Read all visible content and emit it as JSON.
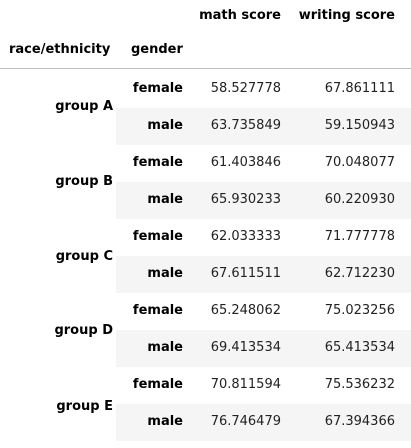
{
  "table": {
    "columns": [
      "math score",
      "writing score"
    ],
    "index_names": [
      "race/ethnicity",
      "gender"
    ],
    "groups": [
      {
        "label": "group A",
        "rows": [
          {
            "gender": "female",
            "math": "58.527778",
            "writing": "67.861111"
          },
          {
            "gender": "male",
            "math": "63.735849",
            "writing": "59.150943"
          }
        ]
      },
      {
        "label": "group B",
        "rows": [
          {
            "gender": "female",
            "math": "61.403846",
            "writing": "70.048077"
          },
          {
            "gender": "male",
            "math": "65.930233",
            "writing": "60.220930"
          }
        ]
      },
      {
        "label": "group C",
        "rows": [
          {
            "gender": "female",
            "math": "62.033333",
            "writing": "71.777778"
          },
          {
            "gender": "male",
            "math": "67.611511",
            "writing": "62.712230"
          }
        ]
      },
      {
        "label": "group D",
        "rows": [
          {
            "gender": "female",
            "math": "65.248062",
            "writing": "75.023256"
          },
          {
            "gender": "male",
            "math": "69.413534",
            "writing": "65.413534"
          }
        ]
      },
      {
        "label": "group E",
        "rows": [
          {
            "gender": "female",
            "math": "70.811594",
            "writing": "75.536232"
          },
          {
            "gender": "male",
            "math": "76.746479",
            "writing": "67.394366"
          }
        ]
      }
    ],
    "colors": {
      "shaded_row": "#f5f5f5",
      "header_rule": "#bdbdbd"
    }
  }
}
